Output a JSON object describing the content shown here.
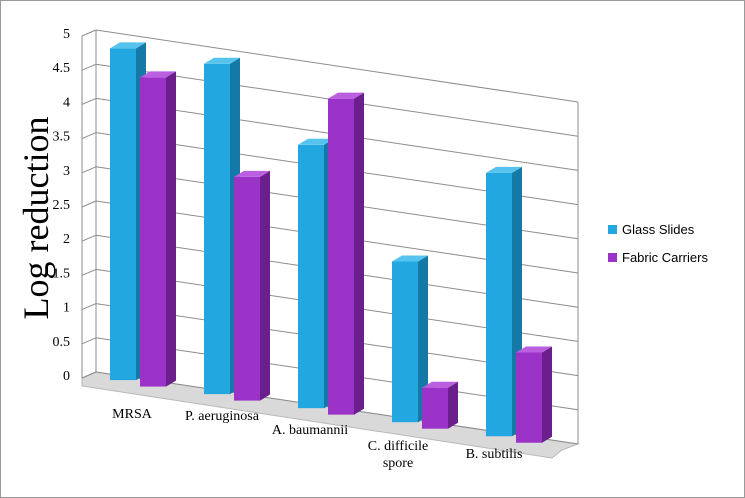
{
  "chart_data": {
    "type": "bar",
    "subtype": "3d-clustered-column",
    "ylabel": "Log reduction",
    "xlabel": "",
    "ylim": [
      0,
      5
    ],
    "yticks": [
      "0",
      "0.5",
      "1",
      "1.5",
      "2",
      "2.5",
      "3",
      "3.5",
      "4",
      "4.5",
      "5"
    ],
    "categories": [
      "MRSA",
      "P. aeruginosa",
      "A. baumannii",
      "C. difficile spore",
      "B. subtilis"
    ],
    "category_lines": [
      [
        "MRSA"
      ],
      [
        "P. aeruginosa"
      ],
      [
        "A. baumannii"
      ],
      [
        "C. difficile",
        "spore"
      ],
      [
        "B. subtilis"
      ]
    ],
    "series": [
      {
        "name": "Glass Slides",
        "values": [
          4.85,
          4.83,
          3.85,
          2.35,
          3.85
        ]
      },
      {
        "name": "Fabric Carriers",
        "values": [
          4.52,
          3.27,
          4.62,
          0.6,
          1.32
        ]
      }
    ],
    "grid": true,
    "legend_position": "right",
    "colors": {
      "glass_front": "#22a7e1",
      "glass_side": "#1479a6",
      "glass_top": "#56c3ee",
      "fabric_front": "#9b33c9",
      "fabric_side": "#6a1f8c",
      "fabric_top": "#b95fe0",
      "gridline": "#8c8c8c",
      "floor": "#d9d9d9"
    }
  }
}
